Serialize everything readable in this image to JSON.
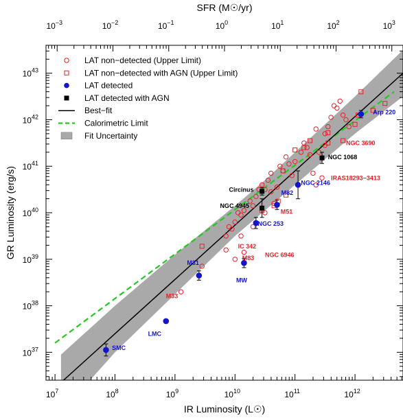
{
  "chart_data": {
    "type": "scatter",
    "xlabel_bottom": "IR Luminosity (L☉)",
    "xlabel_top": "SFR (M☉/yr)",
    "ylabel": "GR Luminosity (erg/s)",
    "xscale": "log",
    "yscale": "log",
    "xlim_exp": [
      6.85,
      12.8
    ],
    "ylim_exp": [
      36.4,
      43.6
    ],
    "top_lim_exp": [
      -3.2,
      3.2
    ],
    "x_ticks": [
      {
        "base": "10",
        "exp": "7",
        "v": 7
      },
      {
        "base": "10",
        "exp": "8",
        "v": 8
      },
      {
        "base": "10",
        "exp": "9",
        "v": 9
      },
      {
        "base": "10",
        "exp": "10",
        "v": 10
      },
      {
        "base": "10",
        "exp": "11",
        "v": 11
      },
      {
        "base": "10",
        "exp": "12",
        "v": 12
      }
    ],
    "y_ticks": [
      {
        "base": "10",
        "exp": "37",
        "v": 37
      },
      {
        "base": "10",
        "exp": "38",
        "v": 38
      },
      {
        "base": "10",
        "exp": "39",
        "v": 39
      },
      {
        "base": "10",
        "exp": "40",
        "v": 40
      },
      {
        "base": "10",
        "exp": "41",
        "v": 41
      },
      {
        "base": "10",
        "exp": "42",
        "v": 42
      },
      {
        "base": "10",
        "exp": "43",
        "v": 43
      }
    ],
    "top_ticks": [
      {
        "base": "10",
        "exp": "−3",
        "v": -3
      },
      {
        "base": "10",
        "exp": "−2",
        "v": -2
      },
      {
        "base": "10",
        "exp": "−1",
        "v": -1
      },
      {
        "base": "10",
        "exp": "0",
        "v": 0
      },
      {
        "base": "10",
        "exp": "1",
        "v": 1
      },
      {
        "base": "10",
        "exp": "2",
        "v": 2
      },
      {
        "base": "10",
        "exp": "3",
        "v": 3
      }
    ],
    "legend": [
      {
        "label": "LAT non−detected (Upper Limit)",
        "marker": "open-circle",
        "color": "#e8202a"
      },
      {
        "label": "LAT non−detected with AGN (Upper Limit)",
        "marker": "open-square",
        "color": "#e8202a"
      },
      {
        "label": "LAT detected",
        "marker": "filled-circle",
        "color": "#1414cc"
      },
      {
        "label": "LAT detected with AGN",
        "marker": "filled-square",
        "color": "#000000"
      },
      {
        "label": "Best−fit",
        "marker": "line",
        "color": "#000000"
      },
      {
        "label": "Calorimetric Limit",
        "marker": "dashed-line",
        "color": "#22c91e"
      },
      {
        "label": "Fit Uncertainty",
        "marker": "band",
        "color": "#a9a9a9"
      }
    ],
    "best_fit": {
      "x": [
        7.1,
        12.8
      ],
      "y": [
        36.35,
        43.0
      ]
    },
    "calorimetric_limit": {
      "x": [
        7.0,
        12.65
      ],
      "y": [
        37.2,
        42.6
      ]
    },
    "uncertainty_band": {
      "x": [
        7.1,
        8.0,
        9.0,
        10.0,
        10.5,
        11.0,
        12.0,
        12.8
      ],
      "lower": [
        35.7,
        37.0,
        38.25,
        39.5,
        40.05,
        40.6,
        41.7,
        42.5
      ],
      "upper": [
        36.95,
        38.0,
        39.1,
        40.15,
        40.7,
        41.3,
        42.5,
        43.5
      ]
    },
    "detected": [
      {
        "label": "SMC",
        "x": 7.85,
        "y": 37.05,
        "err": 0.13,
        "color": "#1414cc"
      },
      {
        "label": "LMC",
        "x": 8.85,
        "y": 37.67,
        "err": 0.0,
        "color": "#1414cc"
      },
      {
        "label": "M31",
        "x": 9.4,
        "y": 38.65,
        "err": 0.1,
        "color": "#1414cc"
      },
      {
        "label": "MW",
        "x": 10.15,
        "y": 38.92,
        "err": 0.1,
        "color": "#1414cc"
      },
      {
        "label": "NGC 253",
        "x": 10.35,
        "y": 39.78,
        "err": 0.12,
        "color": "#1414cc"
      },
      {
        "label": "M82",
        "x": 10.7,
        "y": 40.17,
        "err": 0.1,
        "color": "#1414cc"
      },
      {
        "label": "NGC 2146",
        "x": 11.05,
        "y": 40.6,
        "err": 0.3,
        "color": "#1414cc"
      },
      {
        "label": "Arp 220",
        "x": 12.1,
        "y": 42.12,
        "err": 0.08,
        "color": "#1414cc"
      }
    ],
    "detected_agn": [
      {
        "label": "NGC 4945",
        "x": 10.45,
        "y": 40.1,
        "err": 0.2
      },
      {
        "label": "Circinus",
        "x": 10.45,
        "y": 40.46,
        "err": 0.08
      },
      {
        "label": "NGC 1068",
        "x": 11.45,
        "y": 41.18,
        "err": 0.12
      }
    ],
    "upper_limits": [
      [
        9.85,
        39.2
      ],
      [
        9.85,
        39.5
      ],
      [
        9.9,
        39.7
      ],
      [
        9.95,
        39.65
      ],
      [
        10.0,
        39.8
      ],
      [
        10.05,
        40.0
      ],
      [
        10.1,
        39.5
      ],
      [
        10.1,
        39.95
      ],
      [
        10.15,
        40.05
      ],
      [
        10.15,
        39.15
      ],
      [
        10.25,
        40.25
      ],
      [
        10.3,
        40.15
      ],
      [
        10.3,
        39.7
      ],
      [
        10.35,
        40.35
      ],
      [
        10.4,
        40.5
      ],
      [
        10.45,
        40.6
      ],
      [
        10.5,
        40.5
      ],
      [
        10.55,
        40.7
      ],
      [
        10.6,
        40.45
      ],
      [
        10.6,
        40.85
      ],
      [
        10.65,
        40.2
      ],
      [
        10.7,
        40.55
      ],
      [
        10.75,
        41.0
      ],
      [
        10.8,
        40.9
      ],
      [
        10.85,
        41.2
      ],
      [
        10.9,
        41.05
      ],
      [
        10.95,
        40.8
      ],
      [
        11.0,
        41.1
      ],
      [
        11.1,
        41.3
      ],
      [
        11.15,
        41.5
      ],
      [
        11.2,
        41.4
      ],
      [
        11.25,
        41.25
      ],
      [
        11.3,
        40.85
      ],
      [
        11.35,
        41.8
      ],
      [
        11.4,
        41.3
      ],
      [
        11.45,
        40.75
      ],
      [
        11.5,
        41.7
      ],
      [
        11.55,
        41.85
      ],
      [
        11.6,
        42.05
      ],
      [
        11.65,
        42.3
      ],
      [
        11.7,
        42.25
      ],
      [
        11.75,
        42.4
      ],
      [
        11.8,
        42.1
      ],
      [
        11.85,
        42.0
      ],
      [
        11.9,
        41.85
      ],
      [
        11.5,
        41.45
      ],
      [
        9.45,
        38.85
      ],
      [
        9.1,
        38.3
      ],
      [
        10.0,
        39.0
      ],
      [
        11.35,
        40.6
      ],
      [
        10.5,
        40.0
      ]
    ],
    "upper_limits_agn": [
      [
        9.45,
        39.28
      ],
      [
        10.45,
        40.05
      ],
      [
        10.65,
        40.15
      ],
      [
        10.72,
        40.25
      ],
      [
        10.8,
        40.9
      ],
      [
        10.85,
        40.38
      ],
      [
        11.0,
        41.35
      ],
      [
        11.15,
        41.4
      ],
      [
        11.25,
        41.55
      ],
      [
        11.55,
        41.5
      ],
      [
        11.55,
        41.72
      ],
      [
        11.8,
        41.55
      ],
      [
        12.0,
        41.9
      ],
      [
        12.05,
        42.1
      ],
      [
        12.1,
        42.6
      ],
      [
        12.3,
        42.2
      ],
      [
        12.5,
        42.35
      ]
    ],
    "annotations": [
      {
        "text": "SMC",
        "x": 7.95,
        "y": 37.05,
        "color": "#1414cc"
      },
      {
        "text": "LMC",
        "x": 8.55,
        "y": 37.35,
        "color": "#1414cc"
      },
      {
        "text": "M33",
        "x": 8.85,
        "y": 38.16,
        "color": "#e8202a"
      },
      {
        "text": "M31",
        "x": 9.2,
        "y": 38.88,
        "color": "#1414cc"
      },
      {
        "text": "MW",
        "x": 10.02,
        "y": 38.5,
        "color": "#1414cc"
      },
      {
        "text": "M83",
        "x": 10.12,
        "y": 38.98,
        "color": "#e8202a"
      },
      {
        "text": "NGC 6946",
        "x": 10.5,
        "y": 39.05,
        "color": "#e8202a"
      },
      {
        "text": "IC 342",
        "x": 10.05,
        "y": 39.23,
        "color": "#e8202a"
      },
      {
        "text": "NGC 253",
        "x": 10.38,
        "y": 39.72,
        "color": "#1414cc"
      },
      {
        "text": "M51",
        "x": 10.76,
        "y": 39.98,
        "color": "#e8202a"
      },
      {
        "text": "NGC 4945",
        "x": 9.75,
        "y": 40.1,
        "color": "#000000"
      },
      {
        "text": "Circinus",
        "x": 9.9,
        "y": 40.45,
        "color": "#000000"
      },
      {
        "text": "M82",
        "x": 10.77,
        "y": 40.38,
        "color": "#1414cc"
      },
      {
        "text": "NGC 2146",
        "x": 11.1,
        "y": 40.6,
        "color": "#1414cc"
      },
      {
        "text": "NGC 1068",
        "x": 11.55,
        "y": 41.15,
        "color": "#000000"
      },
      {
        "text": "IRAS18293−3413",
        "x": 11.6,
        "y": 40.7,
        "color": "#e8202a"
      },
      {
        "text": "NGC 3690",
        "x": 11.85,
        "y": 41.45,
        "color": "#e8202a"
      },
      {
        "text": "Arp 220",
        "x": 12.3,
        "y": 42.12,
        "color": "#1414cc"
      }
    ]
  }
}
